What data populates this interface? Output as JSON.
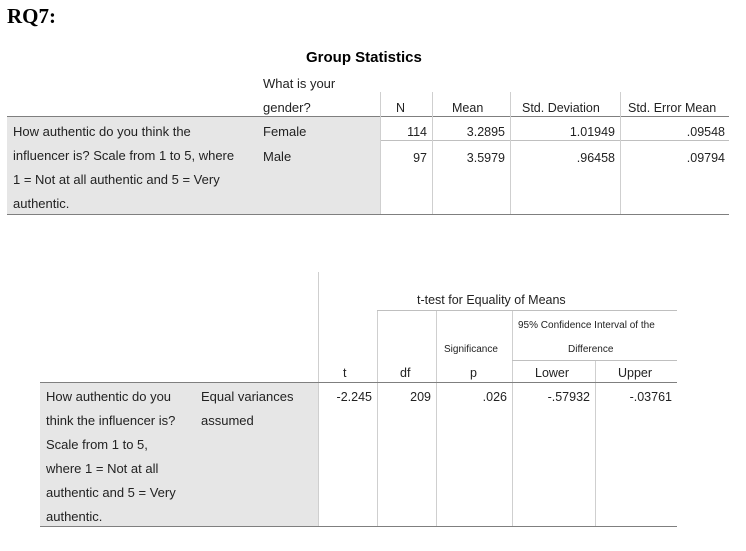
{
  "heading": "RQ7:",
  "group_stats": {
    "title": "Group Statistics",
    "gender_header_line1": "What is your",
    "gender_header_line2": "gender?",
    "col_n": "N",
    "col_mean": "Mean",
    "col_sd": "Std. Deviation",
    "col_se": "Std. Error Mean",
    "row_label_lines": [
      "How authentic do you think the",
      "influencer is? Scale from 1 to 5, where",
      "1 = Not at all authentic and 5 = Very",
      "authentic."
    ],
    "rows": [
      {
        "gender": "Female",
        "n": "114",
        "mean": "3.2895",
        "sd": "1.01949",
        "se": ".09548"
      },
      {
        "gender": "Male",
        "n": "97",
        "mean": "3.5979",
        "sd": ".96458",
        "se": ".09794"
      }
    ]
  },
  "ttest": {
    "header": "t-test for Equality of Means",
    "ci_header": "95% Confidence Interval of the",
    "ci_header2": "Difference",
    "significance": "Significance",
    "col_t": "t",
    "col_df": "df",
    "col_p": "p",
    "col_lower": "Lower",
    "col_upper": "Upper",
    "row_label_lines": [
      "How authentic do you",
      "think the influencer is?",
      "Scale from 1 to 5,",
      "where 1 = Not at all",
      "authentic and 5 = Very",
      "authentic."
    ],
    "assumption_lines": [
      "Equal variances",
      "assumed"
    ],
    "values": {
      "t": "-2.245",
      "df": "209",
      "p": ".026",
      "lower": "-.57932",
      "upper": "-.03761"
    }
  }
}
